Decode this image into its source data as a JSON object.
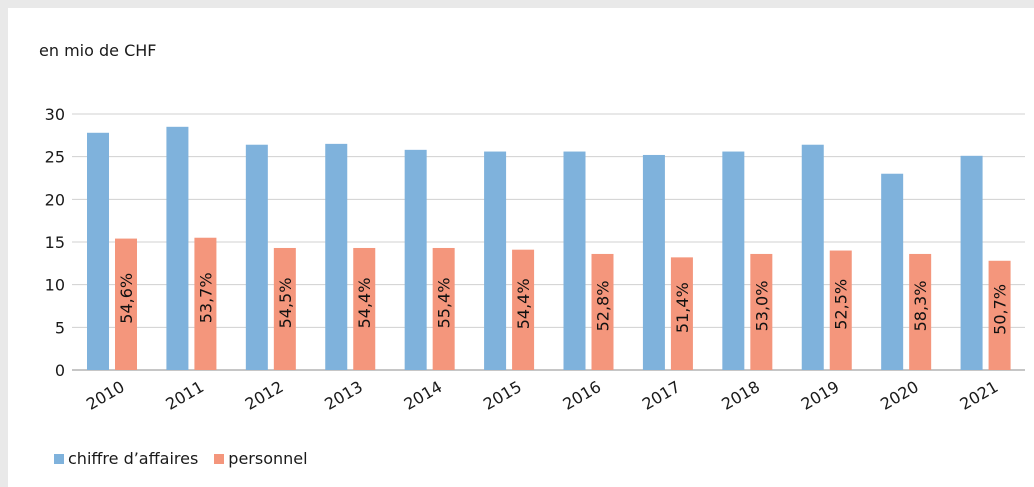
{
  "chart_data": {
    "type": "bar",
    "unit_label": "en mio de CHF",
    "categories": [
      "2010",
      "2011",
      "2012",
      "2013",
      "2014",
      "2015",
      "2016",
      "2017",
      "2018",
      "2019",
      "2020",
      "2021"
    ],
    "ylim": [
      0,
      30
    ],
    "yticks": [
      "0",
      "5",
      "10",
      "15",
      "20",
      "25",
      "30"
    ],
    "grid": true,
    "legend_position": "bottom-left",
    "series": [
      {
        "name": "chiffre d’affaires",
        "color": "#7fb2dc",
        "values": [
          27.8,
          28.5,
          26.4,
          26.5,
          25.8,
          25.6,
          25.6,
          25.2,
          25.6,
          26.4,
          23.0,
          25.1
        ]
      },
      {
        "name": "personnel",
        "color": "#f4967c",
        "values": [
          15.4,
          15.5,
          14.3,
          14.3,
          14.3,
          14.1,
          13.6,
          13.2,
          13.6,
          14.0,
          13.6,
          12.8
        ],
        "labels": [
          "54,6%",
          "53,7%",
          "54,5%",
          "54,4%",
          "55,4%",
          "54,4%",
          "52,8%",
          "51,4%",
          "53,0%",
          "52,5%",
          "58,3%",
          "50,7%"
        ]
      }
    ]
  }
}
